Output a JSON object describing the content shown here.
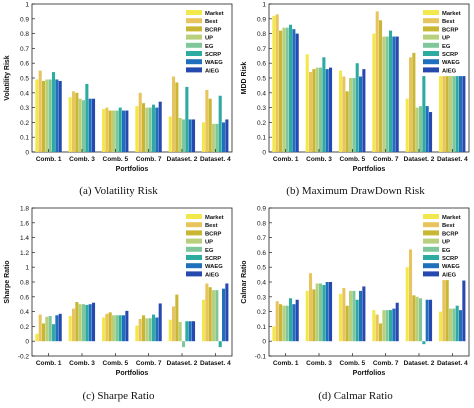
{
  "legend_labels": [
    "Market",
    "Best",
    "BCRP",
    "UP",
    "EG",
    "SCRP",
    "WAEG",
    "AIEG"
  ],
  "series_colors": [
    "#f2e84b",
    "#e8c45e",
    "#c9b632",
    "#b8d07c",
    "#7fc79a",
    "#2eaba0",
    "#1f6fbd",
    "#2649b0"
  ],
  "chart_data": [
    {
      "type": "bar",
      "caption": "(a) Volatility Risk",
      "xlabel": "Portfolios",
      "ylabel": "Volatility Risk",
      "ylim": [
        0,
        1
      ],
      "yticks": [
        0,
        0.1,
        0.2,
        0.3,
        0.4,
        0.5,
        0.6,
        0.7,
        0.8,
        0.9,
        1
      ],
      "categories": [
        "Comb. 1",
        "Comb. 3",
        "Comb. 5",
        "Comb. 7",
        "Dataset. 2",
        "Dataset. 4"
      ],
      "grid": false,
      "legend_position": "top-right",
      "series": [
        {
          "name": "Market",
          "values": [
            0.49,
            0.37,
            0.29,
            0.31,
            0.24,
            0.2
          ]
        },
        {
          "name": "Best",
          "values": [
            0.55,
            0.41,
            0.3,
            0.4,
            0.51,
            0.42
          ]
        },
        {
          "name": "BCRP",
          "values": [
            0.48,
            0.4,
            0.28,
            0.33,
            0.47,
            0.36
          ]
        },
        {
          "name": "UP",
          "values": [
            0.49,
            0.36,
            0.28,
            0.3,
            0.23,
            0.19
          ]
        },
        {
          "name": "EG",
          "values": [
            0.49,
            0.35,
            0.28,
            0.3,
            0.22,
            0.19
          ]
        },
        {
          "name": "SCRP",
          "values": [
            0.54,
            0.46,
            0.3,
            0.32,
            0.44,
            0.38
          ]
        },
        {
          "name": "WAEG",
          "values": [
            0.49,
            0.36,
            0.28,
            0.3,
            0.22,
            0.2
          ]
        },
        {
          "name": "AIEG",
          "values": [
            0.48,
            0.36,
            0.28,
            0.34,
            0.22,
            0.22
          ]
        }
      ]
    },
    {
      "type": "bar",
      "caption": "(b) Maximum DrawDown Risk",
      "xlabel": "Portfolios",
      "ylabel": "MDD Risk",
      "ylim": [
        0,
        1
      ],
      "yticks": [
        0,
        0.1,
        0.2,
        0.3,
        0.4,
        0.5,
        0.6,
        0.7,
        0.8,
        0.9,
        1
      ],
      "categories": [
        "Comb. 1",
        "Comb. 3",
        "Comb. 5",
        "Comb. 7",
        "Dataset. 2",
        "Dataset. 4"
      ],
      "grid": false,
      "legend_position": "top-right",
      "series": [
        {
          "name": "Market",
          "values": [
            0.92,
            0.66,
            0.55,
            0.8,
            0.36,
            0.57
          ]
        },
        {
          "name": "Best",
          "values": [
            0.93,
            0.54,
            0.51,
            0.95,
            0.64,
            0.87
          ]
        },
        {
          "name": "BCRP",
          "values": [
            0.82,
            0.56,
            0.41,
            0.89,
            0.67,
            0.83
          ]
        },
        {
          "name": "UP",
          "values": [
            0.84,
            0.57,
            0.5,
            0.78,
            0.3,
            0.56
          ]
        },
        {
          "name": "EG",
          "values": [
            0.84,
            0.57,
            0.5,
            0.78,
            0.31,
            0.56
          ]
        },
        {
          "name": "SCRP",
          "values": [
            0.86,
            0.64,
            0.6,
            0.82,
            0.75,
            0.86
          ]
        },
        {
          "name": "WAEG",
          "values": [
            0.83,
            0.56,
            0.51,
            0.78,
            0.31,
            0.56
          ]
        },
        {
          "name": "AIEG",
          "values": [
            0.8,
            0.57,
            0.56,
            0.78,
            0.27,
            0.7
          ]
        }
      ]
    },
    {
      "type": "bar",
      "caption": "(c) Sharpe Ratio",
      "xlabel": "Portfolios",
      "ylabel": "Sharpe Ratio",
      "ylim": [
        -0.2,
        1.8
      ],
      "yticks": [
        -0.2,
        0,
        0.2,
        0.4,
        0.6,
        0.8,
        1,
        1.2,
        1.4,
        1.6,
        1.8
      ],
      "categories": [
        "Comb. 1",
        "Comb. 3",
        "Comb. 5",
        "Comb. 7",
        "Dataset. 2",
        "Dataset. 4"
      ],
      "grid": false,
      "legend_position": "top-right",
      "series": [
        {
          "name": "Market",
          "values": [
            0.1,
            0.34,
            0.32,
            0.21,
            0.29,
            0.56
          ]
        },
        {
          "name": "Best",
          "values": [
            0.36,
            0.44,
            0.37,
            0.3,
            0.47,
            0.78
          ]
        },
        {
          "name": "BCRP",
          "values": [
            0.24,
            0.53,
            0.39,
            0.35,
            0.63,
            0.73
          ]
        },
        {
          "name": "UP",
          "values": [
            0.33,
            0.5,
            0.35,
            0.31,
            0.26,
            0.69
          ]
        },
        {
          "name": "EG",
          "values": [
            0.34,
            0.5,
            0.35,
            0.31,
            -0.08,
            0.69
          ]
        },
        {
          "name": "SCRP",
          "values": [
            0.23,
            0.49,
            0.35,
            0.36,
            0.27,
            -0.08
          ]
        },
        {
          "name": "WAEG",
          "values": [
            0.35,
            0.5,
            0.35,
            0.32,
            0.27,
            0.71
          ]
        },
        {
          "name": "AIEG",
          "values": [
            0.37,
            0.52,
            0.41,
            0.51,
            0.27,
            0.78
          ]
        }
      ]
    },
    {
      "type": "bar",
      "caption": "(d) Calmar Ratio",
      "xlabel": "Portfolios",
      "ylabel": "Calmar Ratio",
      "ylim": [
        -0.1,
        0.9
      ],
      "yticks": [
        -0.1,
        0,
        0.1,
        0.2,
        0.3,
        0.4,
        0.5,
        0.6,
        0.7,
        0.8,
        0.9
      ],
      "categories": [
        "Comb. 1",
        "Comb. 3",
        "Comb. 5",
        "Comb. 7",
        "Dataset. 2",
        "Dataset. 4"
      ],
      "grid": false,
      "legend_position": "top-right",
      "series": [
        {
          "name": "Market",
          "values": [
            0.1,
            0.34,
            0.32,
            0.21,
            0.5,
            0.2
          ]
        },
        {
          "name": "Best",
          "values": [
            0.27,
            0.46,
            0.36,
            0.18,
            0.62,
            0.48
          ]
        },
        {
          "name": "BCRP",
          "values": [
            0.25,
            0.35,
            0.24,
            0.12,
            0.31,
            0.42
          ]
        },
        {
          "name": "UP",
          "values": [
            0.24,
            0.39,
            0.34,
            0.21,
            0.3,
            0.22
          ]
        },
        {
          "name": "EG",
          "values": [
            0.24,
            0.39,
            0.34,
            0.21,
            0.29,
            0.22
          ]
        },
        {
          "name": "SCRP",
          "values": [
            0.29,
            0.38,
            0.28,
            0.21,
            -0.02,
            0.24
          ]
        },
        {
          "name": "WAEG",
          "values": [
            0.25,
            0.4,
            0.34,
            0.22,
            0.28,
            0.21
          ]
        },
        {
          "name": "AIEG",
          "values": [
            0.28,
            0.4,
            0.37,
            0.26,
            0.28,
            0.41
          ]
        }
      ]
    }
  ]
}
